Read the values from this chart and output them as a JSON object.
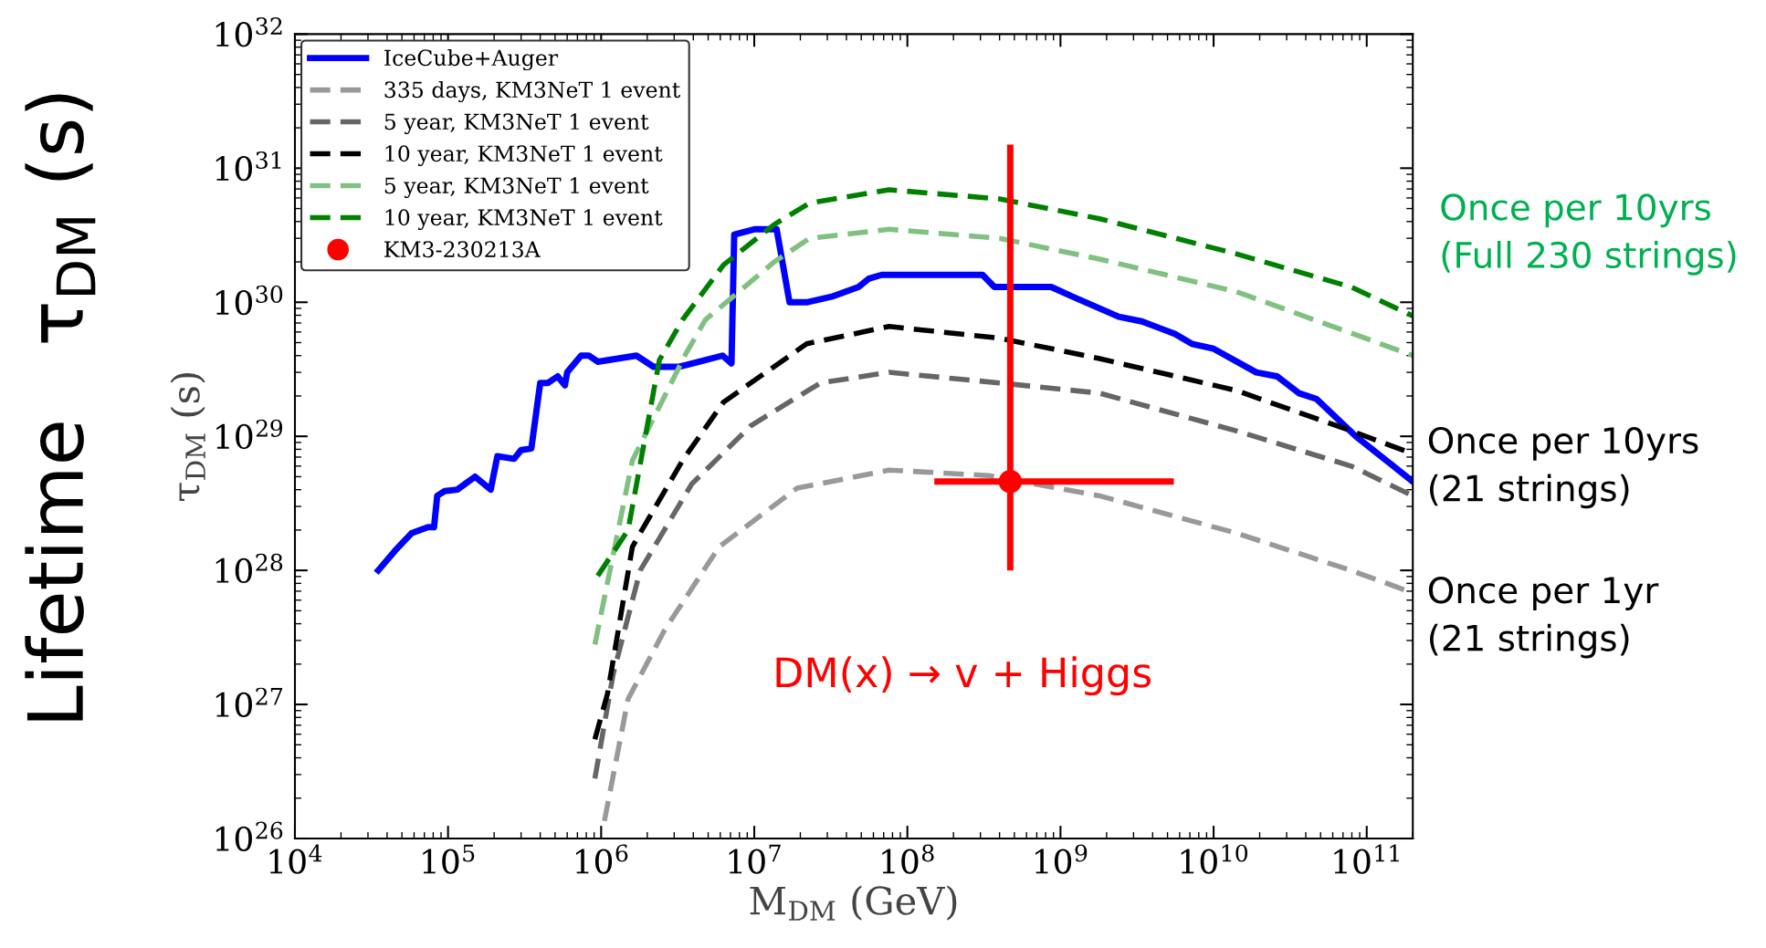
{
  "chart_data": {
    "type": "line",
    "xlabel": "M$_{DM}$ (GeV)",
    "ylabel": "τ$_{DM}$ (s)",
    "log": "xy",
    "grid": false,
    "legend": "top left",
    "marker": "none",
    "xlim": [
      10000,
      200000000000
    ],
    "ylim": [
      1e+26,
      1e+32
    ],
    "xticks": [
      {
        "value": 10000,
        "label": "10$^{4}$"
      },
      {
        "value": 100000,
        "label": "10$^{5}$"
      },
      {
        "value": 1000000,
        "label": "10$^{6}$"
      },
      {
        "value": 10000000,
        "label": "10$^{7}$"
      },
      {
        "value": 100000000,
        "label": "10$^{8}$"
      },
      {
        "value": 1000000000,
        "label": "10$^{9}$"
      },
      {
        "value": 10000000000,
        "label": "10$^{10}$"
      },
      {
        "value": 100000000000,
        "label": "10$^{11}$"
      }
    ],
    "yticks": [
      {
        "value": 1e+26,
        "label": "10$^{26}$"
      },
      {
        "value": 1e+27,
        "label": "10$^{27}$"
      },
      {
        "value": 1e+28,
        "label": "10$^{28}$"
      },
      {
        "value": 1e+29,
        "label": "10$^{29}$"
      },
      {
        "value": 1e+30,
        "label": "10$^{30}$"
      },
      {
        "value": 1e+31,
        "label": "10$^{31}$"
      },
      {
        "value": 1e+32,
        "label": "10$^{32}$"
      }
    ],
    "series": [
      {
        "name": "IceCube+Auger",
        "color": "#0000ff",
        "line_style": "solid",
        "x": [
          35000,
          45000,
          58000,
          74000,
          81000,
          85000,
          95000,
          115000,
          150000,
          190000,
          210000,
          270000,
          300000,
          350000,
          400000,
          450000,
          520000,
          580000,
          600000,
          740000,
          830000,
          950000,
          1700000,
          2200000,
          3200000,
          4800000,
          6200000,
          7100000,
          7400000,
          10000000,
          14000000,
          17000000,
          22000000,
          32000000,
          48000000,
          56000000,
          68000000,
          310000000,
          370000000,
          870000000,
          1200000000,
          2400000000,
          3400000000,
          5600000000,
          7200000000,
          10000000000,
          19000000000,
          26000000000,
          36000000000,
          47000000000,
          85000000000,
          200000000000
        ],
        "values": [
          1e+28,
          1.4e+28,
          1.9e+28,
          2.1e+28,
          2.1e+28,
          3.6e+28,
          3.9e+28,
          4e+28,
          5e+28,
          4e+28,
          7.1e+28,
          6.8e+28,
          7.9e+28,
          8.1e+28,
          2.5e+29,
          2.5e+29,
          2.8e+29,
          2.4e+29,
          3e+29,
          4e+29,
          4e+29,
          3.6e+29,
          4e+29,
          3.3e+29,
          3.3e+29,
          3.7e+29,
          4e+29,
          3.5e+29,
          3.2e+30,
          3.5e+30,
          3.5e+30,
          1e+30,
          1e+30,
          1.1e+30,
          1.3e+30,
          1.5e+30,
          1.6e+30,
          1.6e+30,
          1.3e+30,
          1.3e+30,
          1.1e+30,
          7.8e+29,
          7.2e+29,
          5.8e+29,
          4.9e+29,
          4.5e+29,
          3e+29,
          2.8e+29,
          2.1e+29,
          1.9e+29,
          1e+29,
          4.6e+28
        ]
      },
      {
        "name": "335 days, KM3NeT 1 event",
        "color": "#999999",
        "line_style": "dashed",
        "x": [
          1050000,
          1500000,
          2600000,
          5900000,
          19000000,
          76000000,
          340000000,
          1800000000,
          14000000000,
          79000000000,
          200000000000
        ],
        "values": [
          1.35e+26,
          1.1e+27,
          3.6e+27,
          1.5e+28,
          4.1e+28,
          5.6e+28,
          5.1e+28,
          3.6e+28,
          1.9e+28,
          1e+28,
          6.8e+27
        ]
      },
      {
        "name": "5 year, KM3NeT 1 event",
        "color": "#666666",
        "line_style": "dashed",
        "x": [
          910000,
          1200000,
          1800000,
          3900000,
          9500000,
          27000000,
          76000000,
          400000000,
          1800000000,
          14000000000,
          79000000000,
          200000000000
        ],
        "values": [
          2.8e+26,
          1.7e+27,
          1e+28,
          4.4e+28,
          1.2e+29,
          2.5e+29,
          3e+29,
          2.5e+29,
          2.1e+29,
          1.1e+29,
          6e+28,
          3.6e+28
        ]
      },
      {
        "name": "10 year, KM3NeT 1 event",
        "color": "#000000",
        "line_style": "dashed",
        "x": [
          910000,
          1100000,
          1600000,
          1800000,
          3400000,
          6300000,
          22000000,
          76000000,
          400000000,
          1800000000,
          14000000000,
          79000000000,
          200000000000
        ],
        "values": [
          5.5e+26,
          1.2e+27,
          1.5e+28,
          1.9e+28,
          6.6e+28,
          1.8e+29,
          4.9e+29,
          6.6e+29,
          5.4e+29,
          3.8e+29,
          2.2e+29,
          1.1e+29,
          7.4e+28
        ]
      },
      {
        "name": "5 year, KM3NeT 1 event",
        "color": "#80c080",
        "line_style": "dashed",
        "x": [
          910000,
          1600000,
          3600000,
          4800000,
          13500000,
          23000000,
          76000000,
          400000000,
          1800000000,
          14000000000,
          79000000000,
          200000000000
        ],
        "values": [
          2.8e+27,
          6.6e+28,
          4.2e+29,
          7.4e+29,
          2e+30,
          3e+30,
          3.5e+30,
          3e+30,
          2.1e+30,
          1.2e+30,
          5.9e+29,
          4e+29
        ]
      },
      {
        "name": "10 year, KM3NeT 1 event",
        "color": "#008000",
        "line_style": "dashed",
        "x": [
          950000,
          1500000,
          2400000,
          3400000,
          6300000,
          13500000,
          23000000,
          76000000,
          400000000,
          1800000000,
          14000000000,
          79000000000,
          200000000000
        ],
        "values": [
          9.1e+27,
          2e+28,
          3.7e+29,
          7.4e+29,
          1.9e+30,
          3.8e+30,
          5.5e+30,
          6.9e+30,
          5.9e+30,
          4.2e+30,
          2.3e+30,
          1.3e+30,
          7.9e+29
        ]
      },
      {
        "name": "KM3-230213A",
        "type": "scatter",
        "marker": "circle",
        "color": "#ff0000",
        "x": [
          470000000
        ],
        "values": [
          4.6e+28
        ],
        "errors": [
          [
            1e+28,
            1.5e+31
          ]
        ],
        "xerrors": [
          [
            150000000.0,
            5500000000.0
          ]
        ]
      }
    ],
    "annotations": [
      "Lifetime   τ$_{DM}$ (s)",
      "DM(x) → v + Higgs",
      "Once per 10yrs\n(Full 230 strings)",
      "Once per 10yrs\n(21 strings)",
      "Once per 1yr\n(21 strings)"
    ]
  }
}
